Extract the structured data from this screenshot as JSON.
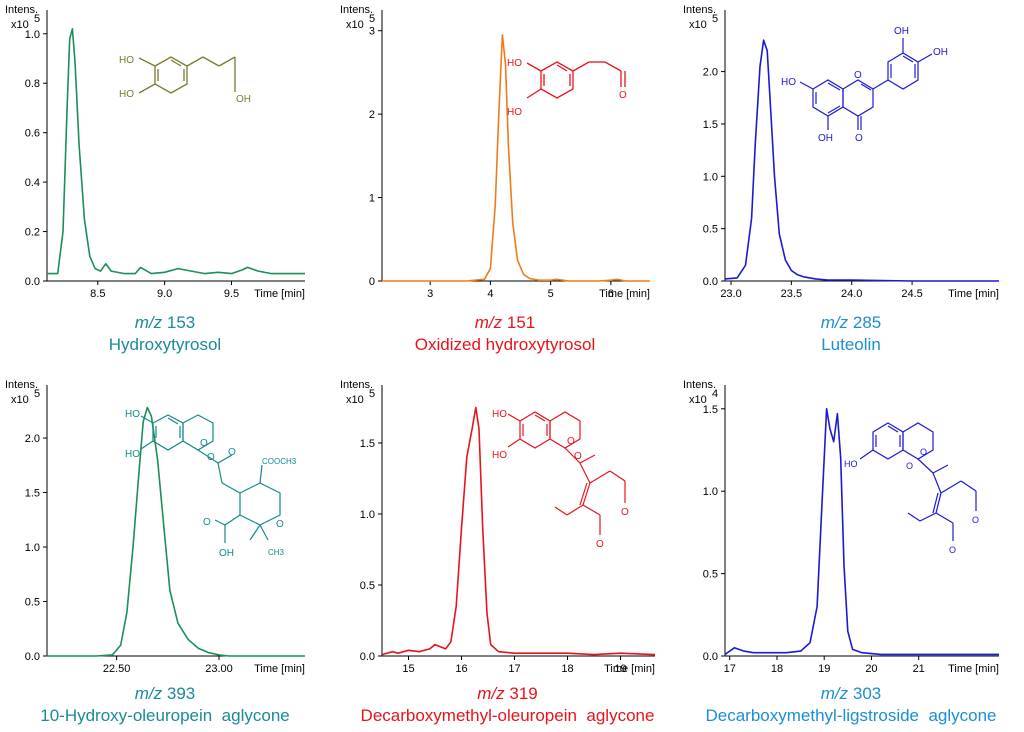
{
  "axis_labels": {
    "y_title": "Intens.",
    "x_title": "Time [min]"
  },
  "chart_data": [
    {
      "type": "line",
      "panel": "hydroxytyrosol",
      "mz_prefix": "m/z",
      "mz_value": "153",
      "compound": "Hydroxytyrosol",
      "ylabel": "Intens.",
      "y_multiplier": "x10",
      "y_exponent": "5",
      "xlabel": "Time [min]",
      "color": "#1b8f5a",
      "caption_color": "#1a8a9a",
      "xlim": [
        8.12,
        10.05
      ],
      "ylim": [
        0,
        1.08
      ],
      "xticks": [
        8.5,
        9.0,
        9.5
      ],
      "xtick_labels": [
        "8.5",
        "9.0",
        "9.5"
      ],
      "yticks": [
        0.0,
        0.2,
        0.4,
        0.6,
        0.8,
        1.0
      ],
      "ytick_labels": [
        "0.0",
        "0.2",
        "0.4",
        "0.6",
        "0.8",
        "1.0"
      ],
      "series": [
        {
          "x": [
            8.12,
            8.2,
            8.24,
            8.27,
            8.29,
            8.31,
            8.33,
            8.36,
            8.4,
            8.44,
            8.48,
            8.52,
            8.56,
            8.6,
            8.7,
            8.78,
            8.82,
            8.9,
            9.0,
            9.1,
            9.2,
            9.3,
            9.4,
            9.5,
            9.58,
            9.62,
            9.7,
            9.8,
            9.9,
            10.05
          ],
          "y": [
            0.03,
            0.03,
            0.2,
            0.7,
            0.98,
            1.02,
            0.88,
            0.55,
            0.25,
            0.1,
            0.05,
            0.04,
            0.07,
            0.04,
            0.03,
            0.03,
            0.055,
            0.03,
            0.035,
            0.05,
            0.04,
            0.03,
            0.035,
            0.03,
            0.045,
            0.055,
            0.04,
            0.03,
            0.03,
            0.03
          ]
        }
      ]
    },
    {
      "type": "line",
      "panel": "oxidized-hydroxytyrosol",
      "mz_prefix": "m/z",
      "mz_value": "151",
      "compound": "Oxidized hydroxytyrosol",
      "ylabel": "Intens.",
      "y_multiplier": "x10",
      "y_exponent": "5",
      "xlabel": "Time [min]",
      "color": "#f07b1a",
      "caption_color": "#e8141c",
      "xlim": [
        2.2,
        6.65
      ],
      "ylim": [
        0,
        3.2
      ],
      "xticks": [
        3,
        4,
        5,
        6
      ],
      "xtick_labels": [
        "3",
        "4",
        "5",
        "6"
      ],
      "yticks": [
        0,
        1,
        2,
        3
      ],
      "ytick_labels": [
        "0",
        "1",
        "2",
        "3"
      ],
      "series": [
        {
          "x": [
            2.2,
            3.6,
            3.9,
            4.0,
            4.08,
            4.14,
            4.2,
            4.25,
            4.3,
            4.37,
            4.45,
            4.55,
            4.65,
            4.8,
            5.0,
            5.1,
            5.3,
            5.8,
            6.0,
            6.1,
            6.25,
            6.65
          ],
          "y": [
            0.0,
            0.0,
            0.02,
            0.15,
            0.9,
            2.0,
            2.95,
            2.6,
            1.6,
            0.7,
            0.25,
            0.08,
            0.03,
            0.01,
            0.01,
            0.02,
            0.0,
            0.0,
            0.01,
            0.02,
            0.0,
            0.0
          ]
        }
      ]
    },
    {
      "type": "line",
      "panel": "luteolin",
      "mz_prefix": "m/z",
      "mz_value": "285",
      "compound": "Luteolin",
      "ylabel": "Intens.",
      "y_multiplier": "x10",
      "y_exponent": "5",
      "xlabel": "Time [min]",
      "color": "#1a1ad6",
      "caption_color": "#1c8ed6",
      "xlim": [
        22.95,
        25.22
      ],
      "ylim": [
        0,
        2.55
      ],
      "xticks": [
        23.0,
        23.5,
        24.0,
        24.5
      ],
      "xtick_labels": [
        "23.0",
        "23.5",
        "24.0",
        "24.5"
      ],
      "yticks": [
        0.0,
        0.5,
        1.0,
        1.5,
        2.0
      ],
      "ytick_labels": [
        "0.0",
        "0.5",
        "1.0",
        "1.5",
        "2.0"
      ],
      "series": [
        {
          "x": [
            22.95,
            23.05,
            23.12,
            23.17,
            23.2,
            23.24,
            23.27,
            23.3,
            23.33,
            23.36,
            23.4,
            23.45,
            23.5,
            23.55,
            23.6,
            23.7,
            23.8,
            24.0,
            24.5,
            25.22
          ],
          "y": [
            0.02,
            0.03,
            0.15,
            0.6,
            1.3,
            2.05,
            2.3,
            2.2,
            1.6,
            1.0,
            0.45,
            0.2,
            0.1,
            0.06,
            0.04,
            0.02,
            0.01,
            0.01,
            0.0,
            0.0
          ]
        }
      ]
    },
    {
      "type": "line",
      "panel": "10-hydroxy-oleuropein-aglycone",
      "mz_prefix": "m/z",
      "mz_value": "393",
      "compound": "10-Hydroxy-oleuropein  aglycone",
      "ylabel": "Intens.",
      "y_multiplier": "x10",
      "y_exponent": "5",
      "xlabel": "Time [min]",
      "color": "#1b8f5a",
      "caption_color": "#1a8a9a",
      "xlim": [
        22.16,
        23.42
      ],
      "ylim": [
        0,
        2.45
      ],
      "xticks": [
        22.5,
        23.0
      ],
      "xtick_labels": [
        "22.50",
        "23.00"
      ],
      "yticks": [
        0.0,
        0.5,
        1.0,
        1.5,
        2.0
      ],
      "ytick_labels": [
        "0.0",
        "0.5",
        "1.0",
        "1.5",
        "2.0"
      ],
      "series": [
        {
          "x": [
            22.16,
            22.4,
            22.48,
            22.52,
            22.55,
            22.58,
            22.61,
            22.63,
            22.65,
            22.67,
            22.7,
            22.73,
            22.76,
            22.8,
            22.85,
            22.9,
            22.95,
            23.0,
            23.05,
            23.42
          ],
          "y": [
            0.0,
            0.0,
            0.01,
            0.1,
            0.4,
            1.0,
            1.7,
            2.15,
            2.28,
            2.2,
            1.8,
            1.2,
            0.6,
            0.3,
            0.15,
            0.07,
            0.03,
            0.01,
            0.0,
            0.0
          ]
        }
      ]
    },
    {
      "type": "line",
      "panel": "decarboxymethyl-oleuropein-aglycone",
      "mz_prefix": "m/z",
      "mz_value": "319",
      "compound": "Decarboxymethyl-oleuropein  aglycone",
      "ylabel": "Intens.",
      "y_multiplier": "x10",
      "y_exponent": "5",
      "xlabel": "Time [min]",
      "color": "#e8141c",
      "caption_color": "#e8141c",
      "xlim": [
        14.5,
        19.65
      ],
      "ylim": [
        0,
        1.88
      ],
      "xticks": [
        15,
        16,
        17,
        18,
        19
      ],
      "xtick_labels": [
        "15",
        "16",
        "17",
        "18",
        "19"
      ],
      "yticks": [
        0.0,
        0.5,
        1.0,
        1.5
      ],
      "ytick_labels": [
        "0.0",
        "0.5",
        "1.0",
        "1.5"
      ],
      "series": [
        {
          "x": [
            14.5,
            14.7,
            14.8,
            15.0,
            15.2,
            15.4,
            15.5,
            15.7,
            15.8,
            15.9,
            16.0,
            16.1,
            16.2,
            16.27,
            16.33,
            16.4,
            16.48,
            16.55,
            16.7,
            17.0,
            17.5,
            18.0,
            18.5,
            19.0,
            19.65
          ],
          "y": [
            0.01,
            0.03,
            0.02,
            0.04,
            0.03,
            0.05,
            0.08,
            0.05,
            0.1,
            0.35,
            0.9,
            1.4,
            1.6,
            1.75,
            1.6,
            0.9,
            0.3,
            0.08,
            0.03,
            0.02,
            0.02,
            0.02,
            0.01,
            0.02,
            0.01
          ]
        }
      ]
    },
    {
      "type": "line",
      "panel": "decarboxymethyl-ligstroside-aglycone",
      "mz_prefix": "m/z",
      "mz_value": "303",
      "compound": "Decarboxymethyl-ligstroside  aglycone",
      "ylabel": "Intens.",
      "y_multiplier": "x10",
      "y_exponent": "4",
      "xlabel": "Time [min]",
      "color": "#1a1ad6",
      "caption_color": "#1c8ed6",
      "xlim": [
        16.9,
        22.7
      ],
      "ylim": [
        0,
        1.62
      ],
      "xticks": [
        17,
        18,
        19,
        20,
        21
      ],
      "xtick_labels": [
        "17",
        "18",
        "19",
        "20",
        "21"
      ],
      "yticks": [
        0.0,
        0.5,
        1.0,
        1.5
      ],
      "ytick_labels": [
        "0.0",
        "0.5",
        "1.0",
        "1.5"
      ],
      "series": [
        {
          "x": [
            16.9,
            17.1,
            17.3,
            17.5,
            17.8,
            18.2,
            18.5,
            18.7,
            18.85,
            18.95,
            19.05,
            19.12,
            19.2,
            19.28,
            19.35,
            19.42,
            19.5,
            19.6,
            19.8,
            20.2,
            21.0,
            22.7
          ],
          "y": [
            0.01,
            0.05,
            0.03,
            0.02,
            0.02,
            0.02,
            0.03,
            0.08,
            0.3,
            0.9,
            1.5,
            1.38,
            1.3,
            1.47,
            1.2,
            0.55,
            0.15,
            0.04,
            0.02,
            0.01,
            0.01,
            0.01
          ]
        }
      ]
    }
  ],
  "structure_labels": {
    "hydroxytyrosol": [
      "HO",
      "HO",
      "OH"
    ],
    "oxidized": [
      "HO",
      "HO",
      "O"
    ],
    "luteolin": [
      "OH",
      "OH",
      "HO",
      "O",
      "OH",
      "O"
    ],
    "hydroxy_oleuropein": [
      "HO",
      "HO",
      "O",
      "O",
      "O",
      "COOCH3",
      "O",
      "OH",
      "O",
      "CH3"
    ],
    "decarbox_oleuropein": [
      "HO",
      "HO",
      "O",
      "O",
      "O",
      "O"
    ],
    "decarbox_ligstroside": [
      "HO",
      "O",
      "O",
      "O",
      "O"
    ]
  }
}
